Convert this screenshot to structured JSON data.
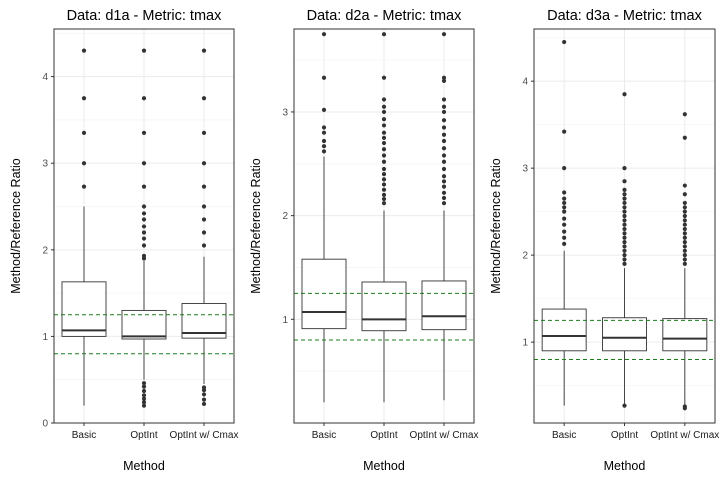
{
  "colors": {
    "panel_border": "#333333",
    "grid_major": "#ebebeb",
    "grid_minor": "#f5f5f5",
    "box_line": "#333333",
    "reference_line": "#1a7f1a"
  },
  "chart_data": [
    {
      "type": "box",
      "title": "Data: d1a - Metric: tmax",
      "xlabel": "Method",
      "ylabel": "Method/Reference Ratio",
      "ylim": [
        0,
        4.55
      ],
      "yticks": [
        0,
        1,
        2,
        3,
        4
      ],
      "grid": true,
      "reference_lines": [
        0.8,
        1.25
      ],
      "categories": [
        "Basic",
        "OptInt",
        "OptInt w/ Cmax"
      ],
      "boxes": [
        {
          "category": "Basic",
          "whisker_low": 0.2,
          "q1": 1.0,
          "median": 1.07,
          "q3": 1.63,
          "whisker_high": 2.5,
          "outliers": [
            2.73,
            3.0,
            3.35,
            3.75,
            4.3
          ]
        },
        {
          "category": "OptInt",
          "whisker_low": 0.5,
          "q1": 0.97,
          "median": 1.0,
          "q3": 1.3,
          "whisker_high": 1.87,
          "outliers": [
            0.2,
            0.24,
            0.28,
            0.32,
            0.37,
            0.42,
            0.46,
            1.9,
            1.93,
            2.05,
            2.13,
            2.2,
            2.27,
            2.35,
            2.42,
            2.5,
            2.73,
            3.0,
            3.35,
            3.75,
            4.3
          ]
        },
        {
          "category": "OptInt w/ Cmax",
          "whisker_low": 0.45,
          "q1": 0.98,
          "median": 1.04,
          "q3": 1.38,
          "whisker_high": 1.92,
          "outliers": [
            0.22,
            0.27,
            0.33,
            0.38,
            0.41,
            2.05,
            2.2,
            2.35,
            2.5,
            2.73,
            3.0,
            3.35,
            3.75,
            4.3
          ]
        }
      ]
    },
    {
      "type": "box",
      "title": "Data: d2a - Metric: tmax",
      "xlabel": "Method",
      "ylabel": "Method/Reference Ratio",
      "ylim": [
        0,
        3.8
      ],
      "yticks": [
        1,
        2,
        3
      ],
      "grid": true,
      "reference_lines": [
        0.8,
        1.25
      ],
      "categories": [
        "Basic",
        "OptInt",
        "OptInt w/ Cmax"
      ],
      "boxes": [
        {
          "category": "Basic",
          "whisker_low": 0.2,
          "q1": 0.91,
          "median": 1.07,
          "q3": 1.58,
          "whisker_high": 2.57,
          "outliers": [
            2.62,
            2.67,
            2.72,
            2.8,
            2.85,
            3.02,
            3.33,
            3.75
          ]
        },
        {
          "category": "OptInt",
          "whisker_low": 0.2,
          "q1": 0.89,
          "median": 1.0,
          "q3": 1.36,
          "whisker_high": 2.05,
          "outliers": [
            2.12,
            2.16,
            2.2,
            2.25,
            2.3,
            2.35,
            2.4,
            2.45,
            2.52,
            2.58,
            2.64,
            2.7,
            2.75,
            2.8,
            2.87,
            2.93,
            3.0,
            3.05,
            3.12,
            3.33,
            3.75
          ]
        },
        {
          "category": "OptInt w/ Cmax",
          "whisker_low": 0.22,
          "q1": 0.9,
          "median": 1.03,
          "q3": 1.37,
          "whisker_high": 2.05,
          "outliers": [
            2.12,
            2.17,
            2.22,
            2.28,
            2.33,
            2.38,
            2.45,
            2.52,
            2.58,
            2.65,
            2.72,
            2.78,
            2.85,
            2.92,
            3.0,
            3.05,
            3.12,
            3.3,
            3.33,
            3.75
          ]
        }
      ]
    },
    {
      "type": "box",
      "title": "Data: d3a - Metric: tmax",
      "xlabel": "Method",
      "ylabel": "Method/Reference Ratio",
      "ylim": [
        0.07,
        4.6
      ],
      "yticks": [
        1,
        2,
        3,
        4
      ],
      "grid": true,
      "reference_lines": [
        0.8,
        1.25
      ],
      "categories": [
        "Basic",
        "OptInt",
        "OptInt w/ Cmax"
      ],
      "boxes": [
        {
          "category": "Basic",
          "whisker_low": 0.27,
          "q1": 0.9,
          "median": 1.07,
          "q3": 1.38,
          "whisker_high": 2.05,
          "outliers": [
            2.13,
            2.2,
            2.27,
            2.35,
            2.42,
            2.5,
            2.55,
            2.6,
            2.65,
            2.72,
            3.0,
            3.42,
            4.45
          ]
        },
        {
          "category": "OptInt",
          "whisker_low": 0.29,
          "q1": 0.9,
          "median": 1.05,
          "q3": 1.28,
          "whisker_high": 1.85,
          "outliers": [
            0.27,
            1.9,
            1.95,
            2.0,
            2.05,
            2.1,
            2.15,
            2.2,
            2.25,
            2.3,
            2.35,
            2.4,
            2.45,
            2.5,
            2.55,
            2.6,
            2.65,
            2.7,
            2.75,
            2.85,
            3.0,
            3.85
          ]
        },
        {
          "category": "OptInt w/ Cmax",
          "whisker_low": 0.28,
          "q1": 0.9,
          "median": 1.04,
          "q3": 1.27,
          "whisker_high": 1.85,
          "outliers": [
            0.24,
            0.26,
            1.9,
            1.95,
            2.0,
            2.05,
            2.1,
            2.15,
            2.2,
            2.25,
            2.3,
            2.35,
            2.4,
            2.45,
            2.5,
            2.55,
            2.6,
            2.7,
            2.8,
            3.35,
            3.62
          ]
        }
      ]
    }
  ]
}
